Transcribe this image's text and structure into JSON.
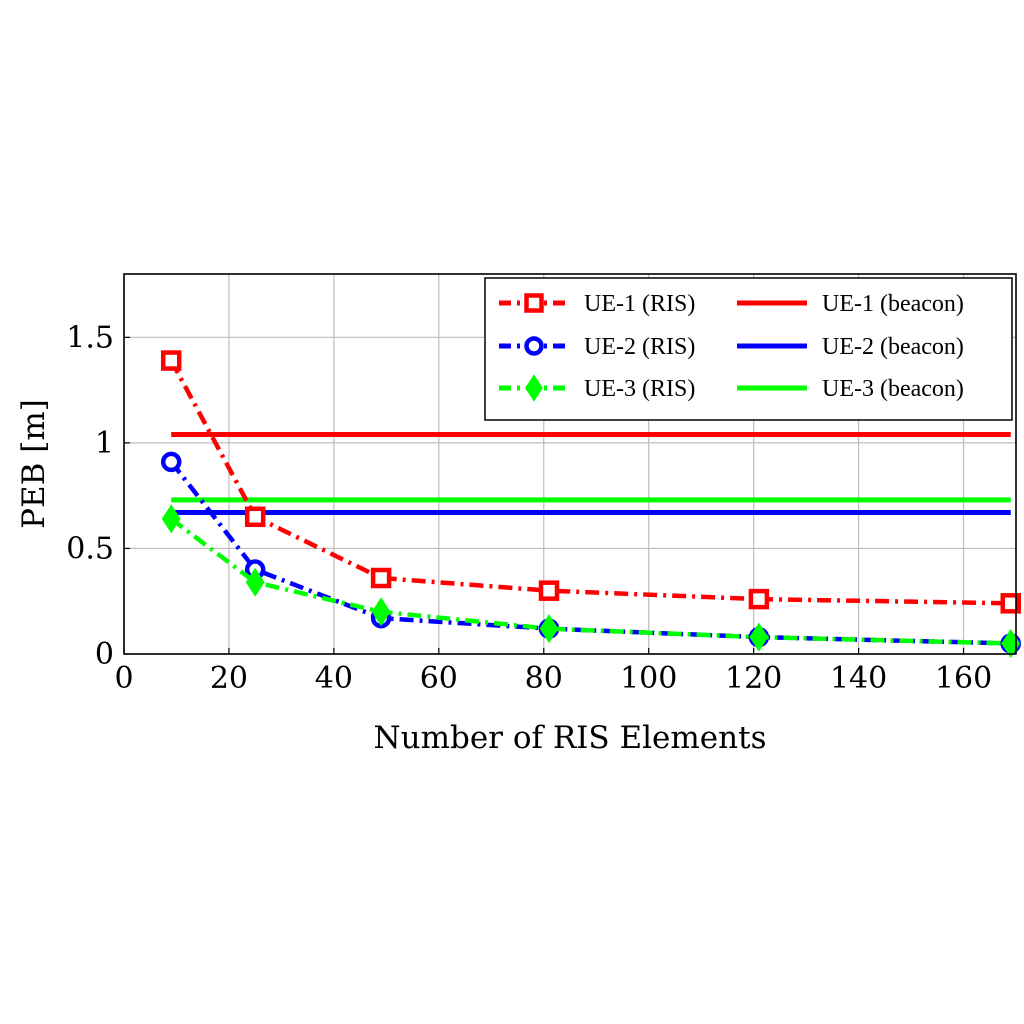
{
  "chart_data": {
    "type": "line",
    "xlabel": "Number of RIS Elements",
    "ylabel": "PEB [m]",
    "xlim": [
      0,
      170
    ],
    "ylim": [
      0,
      1.8
    ],
    "xticks": [
      0,
      20,
      40,
      60,
      80,
      100,
      120,
      140,
      160
    ],
    "yticks": [
      0,
      0.5,
      1,
      1.5
    ],
    "xtick_labels": [
      "0",
      "20",
      "40",
      "60",
      "80",
      "100",
      "120",
      "140",
      "160"
    ],
    "ytick_labels": [
      "0",
      "0.5",
      "1",
      "1.5"
    ],
    "grid": true,
    "legend_position": "top-right",
    "series": [
      {
        "name": "UE-1 (RIS)",
        "color": "#ff0000",
        "style": "dashdot",
        "marker": "square",
        "x": [
          9,
          25,
          49,
          81,
          121,
          169
        ],
        "y": [
          1.39,
          0.65,
          0.36,
          0.3,
          0.26,
          0.24
        ]
      },
      {
        "name": "UE-2 (RIS)",
        "color": "#0000ff",
        "style": "dashdot",
        "marker": "circle",
        "x": [
          9,
          25,
          49,
          81,
          121,
          169
        ],
        "y": [
          0.91,
          0.4,
          0.17,
          0.12,
          0.08,
          0.05
        ]
      },
      {
        "name": "UE-3 (RIS)",
        "color": "#00ff00",
        "style": "dashdot",
        "marker": "diamond",
        "x": [
          9,
          25,
          49,
          81,
          121,
          169
        ],
        "y": [
          0.64,
          0.34,
          0.2,
          0.12,
          0.08,
          0.05
        ]
      },
      {
        "name": "UE-1 (beacon)",
        "color": "#ff0000",
        "style": "solid",
        "marker": "none",
        "x": [
          9,
          169
        ],
        "y": [
          1.04,
          1.04
        ]
      },
      {
        "name": "UE-2 (beacon)",
        "color": "#0000ff",
        "style": "solid",
        "marker": "none",
        "x": [
          9,
          169
        ],
        "y": [
          0.67,
          0.67
        ]
      },
      {
        "name": "UE-3 (beacon)",
        "color": "#00ff00",
        "style": "solid",
        "marker": "none",
        "x": [
          9,
          169
        ],
        "y": [
          0.73,
          0.73
        ]
      }
    ]
  }
}
